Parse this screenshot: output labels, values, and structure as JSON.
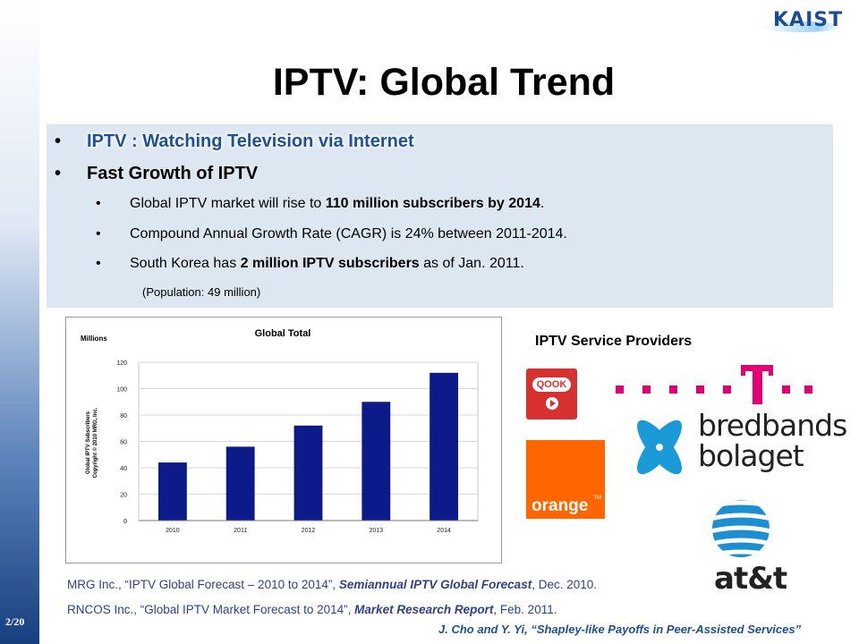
{
  "slide": {
    "title": "IPTV: Global Trend",
    "page_number": "2/20",
    "logo_text": "KAIST",
    "footer": "J. Cho and Y. Yi, “Shapley-like Payoffs in Peer-Assisted Services”"
  },
  "bullets": {
    "b1": {
      "dot": "•",
      "text": "IPTV : Watching Television via Internet"
    },
    "b2": {
      "dot": "•",
      "text": "Fast Growth of IPTV"
    },
    "sub1": {
      "dot": "•",
      "pre": "Global IPTV market will rise to ",
      "bold": "110 million subscribers by 2014",
      "post": "."
    },
    "sub2": {
      "dot": "•",
      "text": "Compound Annual Growth Rate (CAGR) is 24% between 2011-2014."
    },
    "sub3": {
      "dot": "•",
      "pre": "South Korea has ",
      "bold": "2 million IPTV subscribers",
      "post": " as of Jan. 2011."
    },
    "note": "(Population: 49 million)"
  },
  "providers": {
    "title": "IPTV Service Providers",
    "qook": "QOOK",
    "orange": "orange",
    "orange_tm": "TM",
    "bredband_line1": "bredbands",
    "bredband_line2": "bolaget",
    "att": "at&t"
  },
  "references": {
    "ref1_pre": "MRG Inc., “IPTV Global Forecast – 2010 to 2014”, ",
    "ref1_em": "Semiannual IPTV Global Forecast",
    "ref1_post": ", Dec. 2010.",
    "ref2_pre": "RNCOS Inc., “Global IPTV Market Forecast to 2014”, ",
    "ref2_em": "Market Research Report",
    "ref2_post": ", Feb. 2011."
  },
  "colors": {
    "bar": "#0d1a8a",
    "bullet_box": "#dde7f2",
    "title_highlight": "#1f4f99"
  },
  "chart_data": {
    "type": "bar",
    "title": "Global Total",
    "unit_label": "Millions",
    "ylabel": "Global IPTV Subscribers",
    "copyright": "Copyright © 2010 MRG, Inc.",
    "categories": [
      "2010",
      "2011",
      "2012",
      "2013",
      "2014"
    ],
    "values": [
      44,
      56,
      72,
      90,
      112
    ],
    "ylim": [
      0,
      120
    ],
    "yticks": [
      0,
      20,
      40,
      60,
      80,
      100,
      120
    ],
    "grid": true,
    "legend": "none"
  }
}
